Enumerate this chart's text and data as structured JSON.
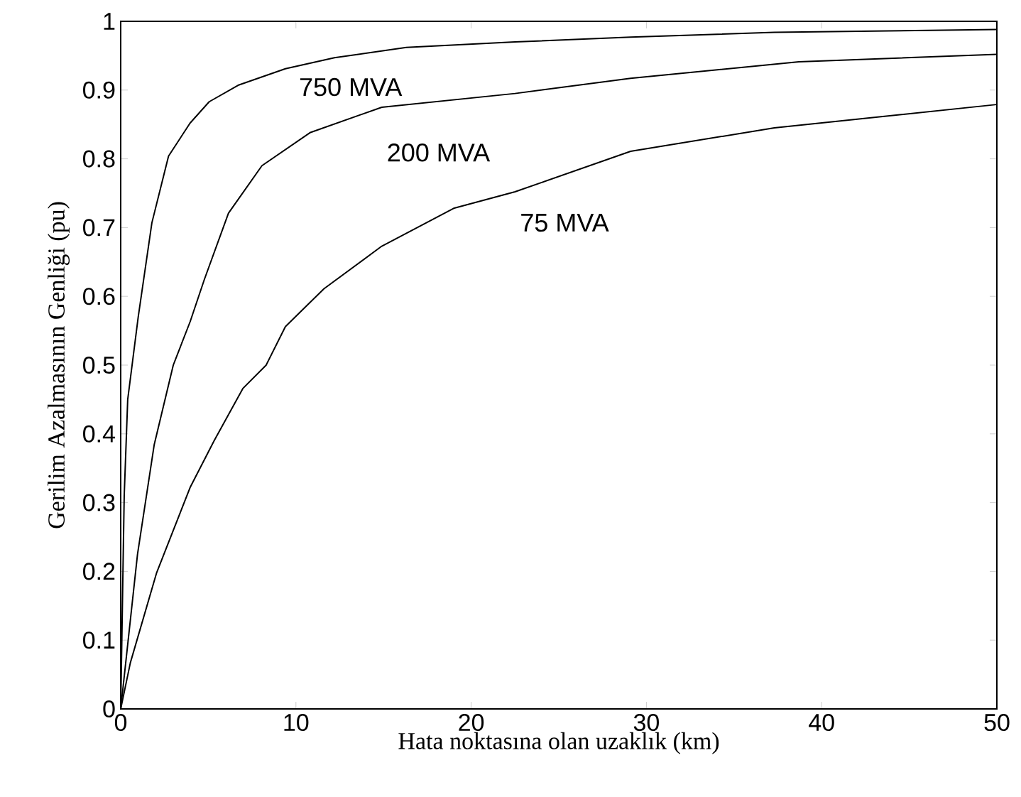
{
  "chart_data": {
    "type": "line",
    "xlabel": "Hata noktasına olan uzaklık (km)",
    "ylabel": "Gerilim Azalmasının Genliği (pu)",
    "series": [
      {
        "name": "750 MVA",
        "color": "#000000",
        "x": [
          0,
          0.2,
          0.4,
          1.0,
          1.78,
          2.73,
          3.96,
          5.05,
          6.7,
          9.4,
          12.2,
          16.3,
          22.5,
          29.1,
          37.3,
          50
        ],
        "values": [
          0,
          0.31,
          0.45,
          0.57,
          0.707,
          0.804,
          0.852,
          0.883,
          0.907,
          0.931,
          0.947,
          0.962,
          0.97,
          0.977,
          0.984,
          0.988
        ]
      },
      {
        "name": "200 MVA",
        "color": "#000000",
        "x": [
          0,
          0.96,
          1.91,
          3.0,
          3.96,
          4.78,
          6.15,
          8.06,
          10.8,
          14.9,
          22.5,
          29.1,
          38.7,
          50
        ],
        "values": [
          0,
          0.225,
          0.384,
          0.5,
          0.563,
          0.625,
          0.721,
          0.79,
          0.838,
          0.875,
          0.895,
          0.917,
          0.941,
          0.952
        ]
      },
      {
        "name": "75 MVA",
        "color": "#000000",
        "x": [
          0,
          0.55,
          2.05,
          3.96,
          5.33,
          6.97,
          8.3,
          9.4,
          11.6,
          14.9,
          19.0,
          22.5,
          29.1,
          37.3,
          50
        ],
        "values": [
          0,
          0.067,
          0.198,
          0.322,
          0.39,
          0.466,
          0.5,
          0.556,
          0.611,
          0.673,
          0.728,
          0.752,
          0.811,
          0.845,
          0.879
        ]
      }
    ],
    "xlim": [
      0,
      50
    ],
    "ylim": [
      0,
      1
    ],
    "xticks": [
      0,
      10,
      20,
      30,
      40,
      50
    ],
    "yticks": [
      0,
      0.1,
      0.2,
      0.3,
      0.4,
      0.5,
      0.6,
      0.7,
      0.8,
      0.9,
      1
    ],
    "grid": false,
    "marker": "none",
    "line_style": "solid"
  }
}
